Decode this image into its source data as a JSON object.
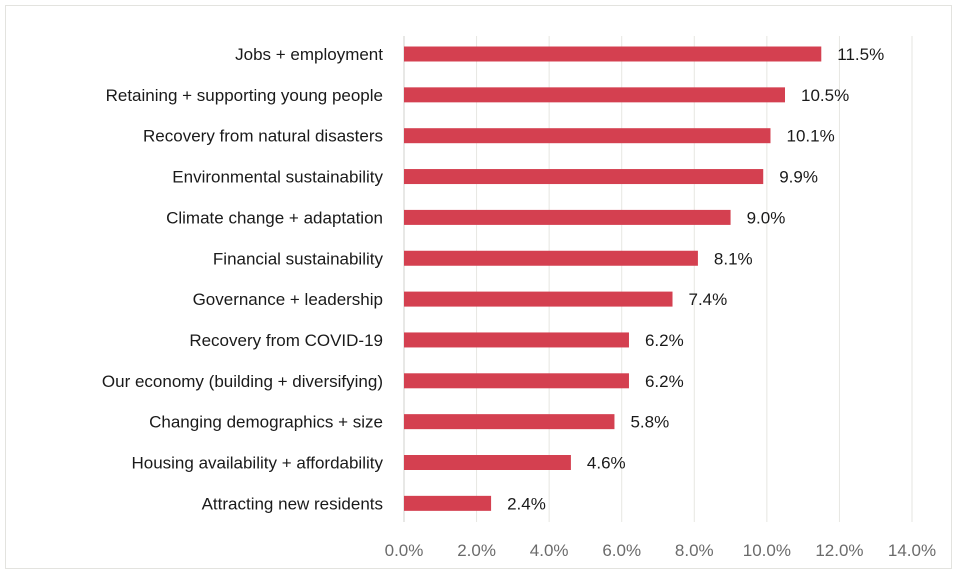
{
  "chart_data": {
    "type": "bar",
    "orientation": "horizontal",
    "categories": [
      "Jobs + employment",
      "Retaining + supporting young people",
      "Recovery from natural disasters",
      "Environmental sustainability",
      "Climate change + adaptation",
      "Financial sustainability",
      "Governance + leadership",
      "Recovery from COVID-19",
      "Our economy (building + diversifying)",
      "Changing demographics + size",
      "Housing availability + affordability",
      "Attracting new residents"
    ],
    "values": [
      11.5,
      10.5,
      10.1,
      9.9,
      9.0,
      8.1,
      7.4,
      6.2,
      6.2,
      5.8,
      4.6,
      2.4
    ],
    "value_labels": [
      "11.5%",
      "10.5%",
      "10.1%",
      "9.9%",
      "9.0%",
      "8.1%",
      "7.4%",
      "6.2%",
      "6.2%",
      "5.8%",
      "4.6%",
      "2.4%"
    ],
    "xlim": [
      0,
      14
    ],
    "ticks": [
      0,
      2,
      4,
      6,
      8,
      10,
      12,
      14
    ],
    "tick_labels": [
      "0.0%",
      "2.0%",
      "4.0%",
      "6.0%",
      "8.0%",
      "10.0%",
      "12.0%",
      "14.0%"
    ],
    "bar_color": "#d44050",
    "grid": true,
    "legend": "none"
  }
}
